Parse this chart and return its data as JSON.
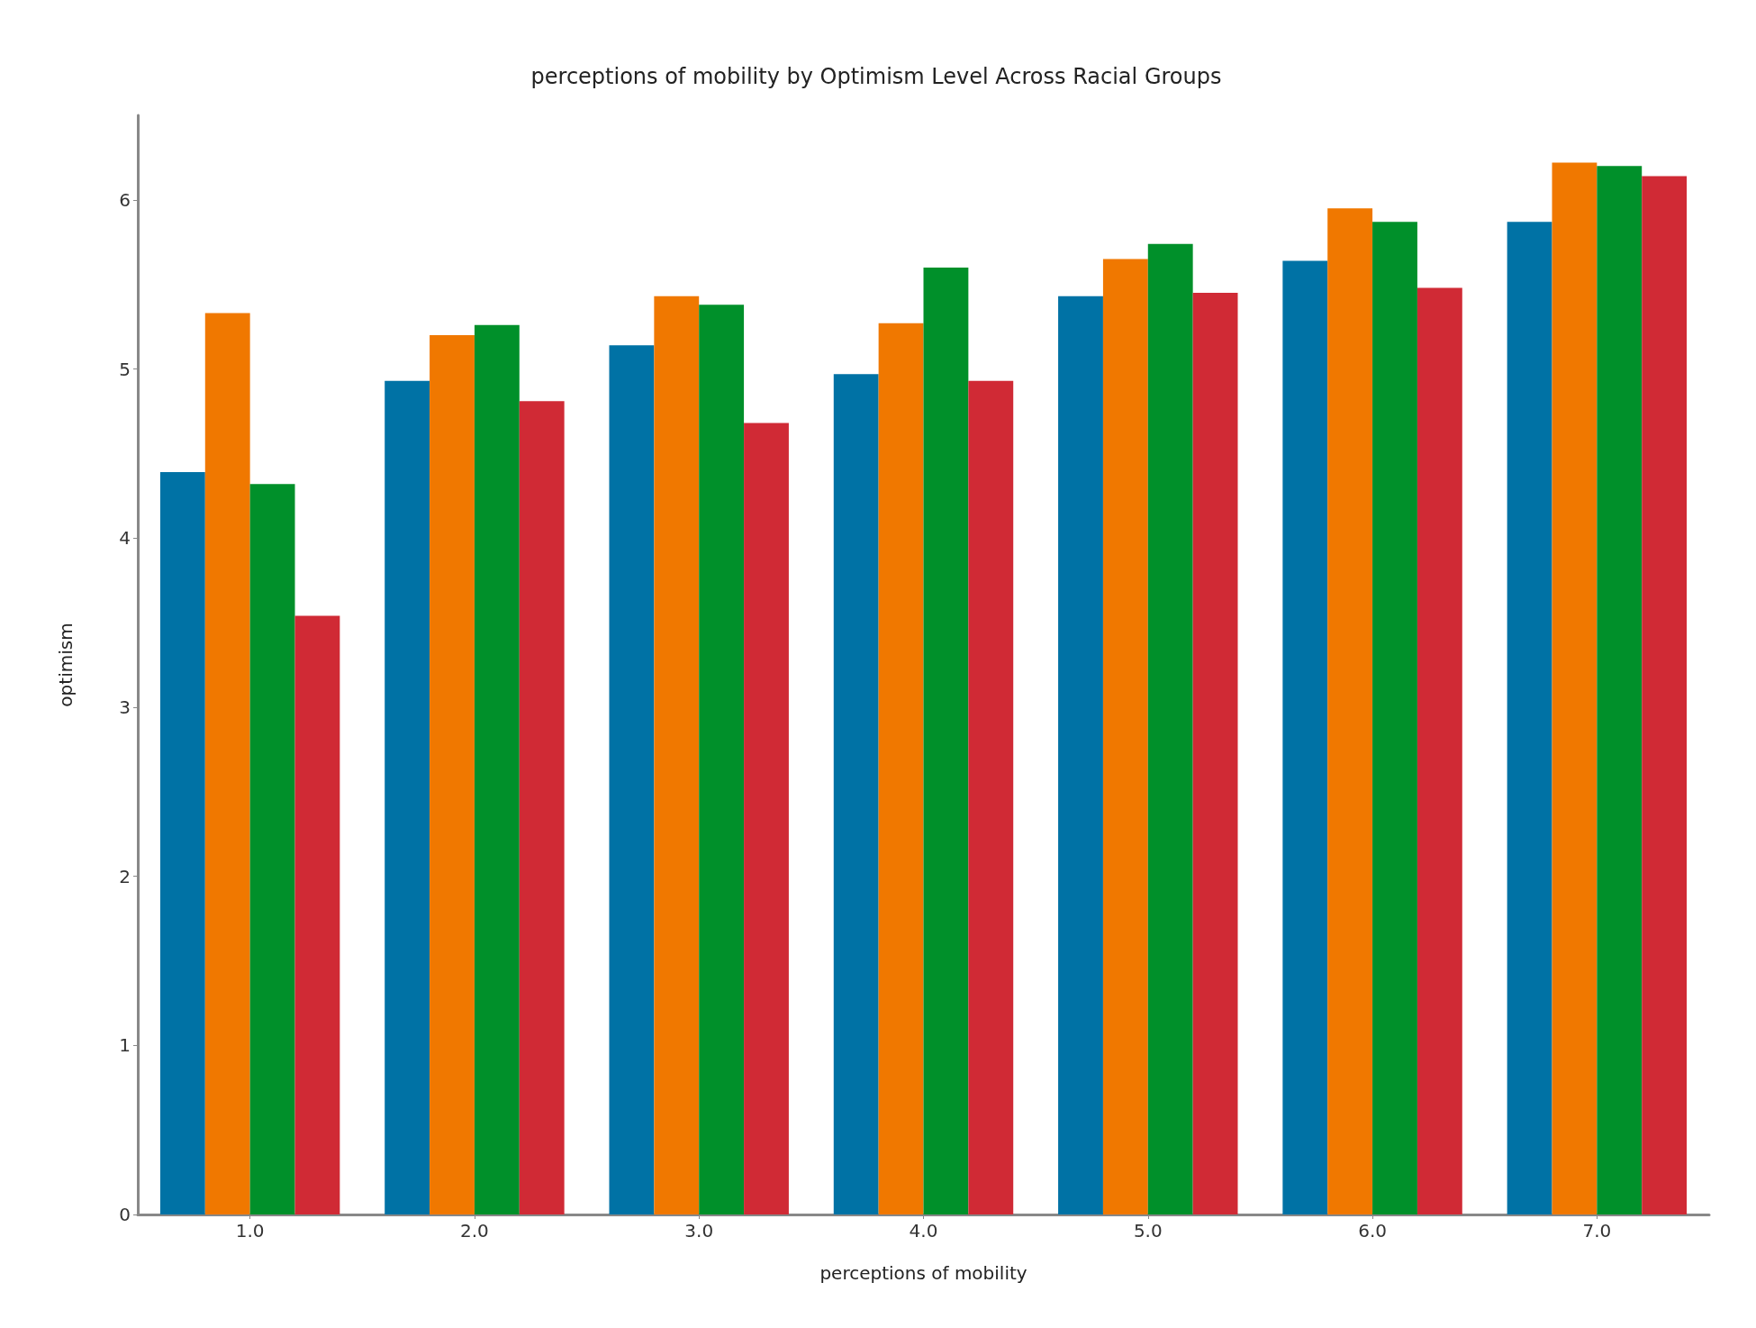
{
  "chart_data": {
    "type": "bar",
    "title": "perceptions of mobility by Optimism Level Across Racial Groups",
    "xlabel": "perceptions of mobility",
    "ylabel": "optimism",
    "categories": [
      "1.0",
      "2.0",
      "3.0",
      "4.0",
      "5.0",
      "6.0",
      "7.0"
    ],
    "series": [
      {
        "color": "#0072a5",
        "values": [
          4.39,
          4.93,
          5.14,
          4.97,
          5.43,
          5.64,
          5.87
        ]
      },
      {
        "color": "#f07800",
        "values": [
          5.33,
          5.2,
          5.43,
          5.27,
          5.65,
          5.95,
          6.22
        ]
      },
      {
        "color": "#00902a",
        "values": [
          4.32,
          5.26,
          5.38,
          5.6,
          5.74,
          5.87,
          6.2
        ]
      },
      {
        "color": "#d02a35",
        "values": [
          3.54,
          4.81,
          4.68,
          4.93,
          5.45,
          5.48,
          6.14
        ]
      }
    ],
    "ylim": [
      0,
      6.5
    ],
    "yticks": [
      0,
      1,
      2,
      3,
      4,
      5,
      6
    ],
    "grid": false
  }
}
